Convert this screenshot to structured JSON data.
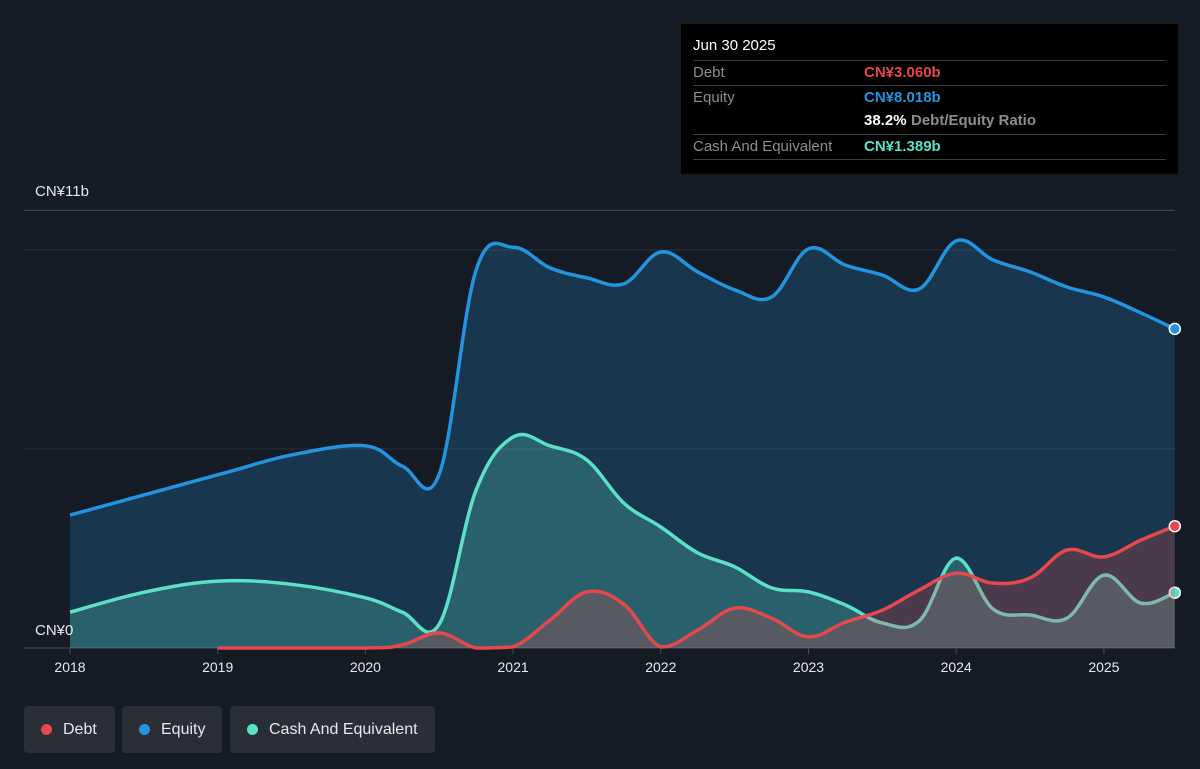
{
  "tooltip": {
    "date": "Jun 30 2025",
    "debt_label": "Debt",
    "debt_value": "CN¥3.060b",
    "equity_label": "Equity",
    "equity_value": "CN¥8.018b",
    "ratio_value": "38.2%",
    "ratio_label": "Debt/Equity Ratio",
    "cash_label": "Cash And Equivalent",
    "cash_value": "CN¥1.389b"
  },
  "legend": [
    {
      "label": "Debt",
      "color": "#e5484d"
    },
    {
      "label": "Equity",
      "color": "#2394df"
    },
    {
      "label": "Cash And Equivalent",
      "color": "#5ce0c8"
    }
  ],
  "chart_data": {
    "type": "area",
    "unit": "CN¥ billions",
    "y_tick_labels": [
      "CN¥0",
      "CN¥11b"
    ],
    "ylim": [
      0,
      11
    ],
    "x_tick_labels": [
      "2018",
      "2019",
      "2020",
      "2021",
      "2022",
      "2023",
      "2024",
      "2025"
    ],
    "xlim": [
      2018,
      2025.48
    ],
    "grid": true,
    "legend_position": "bottom-left",
    "series": [
      {
        "name": "Equity",
        "color": "#2394df",
        "x": [
          2018,
          2019,
          2019.5,
          2020,
          2020.25,
          2020.5,
          2020.75,
          2021,
          2021.25,
          2021.5,
          2021.75,
          2022,
          2022.25,
          2022.5,
          2022.75,
          2023,
          2023.25,
          2023.5,
          2023.75,
          2024,
          2024.25,
          2024.5,
          2024.75,
          2025,
          2025.25,
          2025.48
        ],
        "y": [
          3.34,
          4.35,
          4.85,
          5.08,
          4.57,
          4.37,
          9.5,
          10.07,
          9.55,
          9.3,
          9.15,
          9.95,
          9.45,
          9.0,
          8.82,
          10.03,
          9.62,
          9.37,
          9.02,
          10.23,
          9.75,
          9.45,
          9.07,
          8.82,
          8.42,
          8.018
        ]
      },
      {
        "name": "Cash And Equivalent",
        "color": "#5ce0c8",
        "x": [
          2018,
          2018.5,
          2019,
          2019.5,
          2020,
          2020.25,
          2020.5,
          2020.75,
          2021,
          2021.25,
          2021.5,
          2021.75,
          2022,
          2022.25,
          2022.5,
          2022.75,
          2023,
          2023.25,
          2023.5,
          2023.75,
          2024,
          2024.25,
          2024.5,
          2024.75,
          2025,
          2025.25,
          2025.48
        ],
        "y": [
          0.9,
          1.4,
          1.68,
          1.6,
          1.26,
          0.9,
          0.6,
          3.97,
          5.3,
          5.08,
          4.72,
          3.64,
          3.04,
          2.39,
          2.04,
          1.51,
          1.41,
          1.08,
          0.63,
          0.68,
          2.26,
          0.98,
          0.83,
          0.75,
          1.83,
          1.13,
          1.389
        ]
      },
      {
        "name": "Debt",
        "color": "#e5484d",
        "x": [
          2019,
          2020,
          2020.25,
          2020.5,
          2020.75,
          2021,
          2021.25,
          2021.5,
          2021.75,
          2022,
          2022.25,
          2022.5,
          2022.75,
          2023,
          2023.25,
          2023.5,
          2023.75,
          2024,
          2024.25,
          2024.5,
          2024.75,
          2025,
          2025.25,
          2025.48
        ],
        "y": [
          0,
          0,
          0.08,
          0.38,
          0,
          0.03,
          0.7,
          1.41,
          1.1,
          0.03,
          0.45,
          1.0,
          0.75,
          0.28,
          0.65,
          0.95,
          1.46,
          1.88,
          1.63,
          1.76,
          2.46,
          2.29,
          2.71,
          3.06
        ]
      }
    ]
  }
}
